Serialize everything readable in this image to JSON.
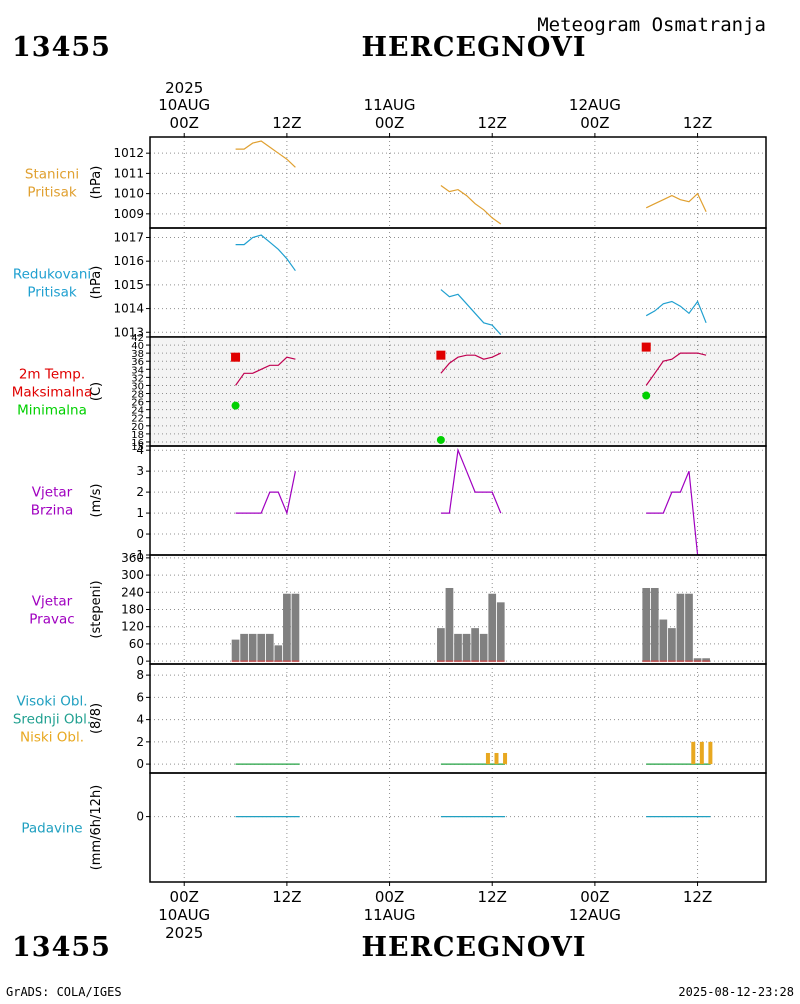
{
  "header": {
    "station_id": "13455",
    "station_name": "HERCEGNOVI",
    "chart_title": "Meteogram Osmatranja"
  },
  "footer": {
    "left": "GrADS: COLA/IGES",
    "right": "2025-08-12-23:28"
  },
  "time_axis": {
    "top": [
      {
        "year": "2025",
        "date": "10AUG",
        "hour": "00Z"
      },
      {
        "year": "",
        "date": "",
        "hour": "12Z"
      },
      {
        "year": "",
        "date": "11AUG",
        "hour": "00Z"
      },
      {
        "year": "",
        "date": "",
        "hour": "12Z"
      },
      {
        "year": "",
        "date": "12AUG",
        "hour": "00Z"
      },
      {
        "year": "",
        "date": "",
        "hour": "12Z"
      }
    ],
    "bottom": [
      {
        "hour": "00Z",
        "date": "10AUG",
        "year": "2025"
      },
      {
        "hour": "12Z",
        "date": "",
        "year": ""
      },
      {
        "hour": "00Z",
        "date": "11AUG",
        "year": ""
      },
      {
        "hour": "12Z",
        "date": "",
        "year": ""
      },
      {
        "hour": "00Z",
        "date": "12AUG",
        "year": ""
      },
      {
        "hour": "12Z",
        "date": "",
        "year": ""
      }
    ],
    "hours": [
      0,
      12,
      24,
      36,
      48,
      60
    ]
  },
  "colors": {
    "station_pressure": "#e0a030",
    "reduced_pressure": "#20a0d0",
    "tmax": "#e00000",
    "tmin": "#00d000",
    "temp_line": "#c00050",
    "wind": "#a000c0",
    "bars": "#808080",
    "bar_base": "#c05050",
    "cloud_low": "#e8a820",
    "cloud_line": "#20a040",
    "precip": "#20a0c0"
  },
  "chart_data": [
    {
      "type": "line",
      "panel": "station_pressure",
      "label_lines": [
        "Stanicni",
        "Pritisak"
      ],
      "label_colors": [
        "#e0a030",
        "#e0a030"
      ],
      "ylabel": "(hPa)",
      "ylim": [
        1008.3,
        1012.8
      ],
      "yticks": [
        1009,
        1010,
        1011,
        1012
      ],
      "xlim": [
        -4,
        68
      ],
      "series": [
        {
          "name": "station pressure",
          "color": "#e0a030",
          "segments": [
            {
              "x": [
                6,
                7,
                8,
                9,
                10,
                11,
                12,
                13
              ],
              "y": [
                1012.2,
                1012.2,
                1012.5,
                1012.6,
                1012.3,
                1012.0,
                1011.7,
                1011.3
              ]
            },
            {
              "x": [
                30,
                31,
                32,
                33,
                34,
                35,
                36,
                37
              ],
              "y": [
                1010.4,
                1010.1,
                1010.2,
                1009.9,
                1009.5,
                1009.2,
                1008.8,
                1008.5
              ]
            },
            {
              "x": [
                54,
                55,
                56,
                57,
                58,
                59,
                60,
                61
              ],
              "y": [
                1009.3,
                1009.5,
                1009.7,
                1009.9,
                1009.7,
                1009.6,
                1010.0,
                1009.1
              ]
            }
          ]
        }
      ]
    },
    {
      "type": "line",
      "panel": "reduced_pressure",
      "label_lines": [
        "Redukovani",
        "Pritisak"
      ],
      "label_colors": [
        "#20a0d0",
        "#20a0d0"
      ],
      "ylabel": "(hPa)",
      "ylim": [
        1012.8,
        1017.4
      ],
      "yticks": [
        1013,
        1014,
        1015,
        1016,
        1017
      ],
      "xlim": [
        -4,
        68
      ],
      "series": [
        {
          "name": "reduced pressure",
          "color": "#20a0d0",
          "segments": [
            {
              "x": [
                6,
                7,
                8,
                9,
                10,
                11,
                12,
                13
              ],
              "y": [
                1016.7,
                1016.7,
                1017.0,
                1017.1,
                1016.8,
                1016.5,
                1016.1,
                1015.6
              ]
            },
            {
              "x": [
                30,
                31,
                32,
                33,
                34,
                35,
                36,
                37
              ],
              "y": [
                1014.8,
                1014.5,
                1014.6,
                1014.2,
                1013.8,
                1013.4,
                1013.3,
                1012.9
              ]
            },
            {
              "x": [
                54,
                55,
                56,
                57,
                58,
                59,
                60,
                61
              ],
              "y": [
                1013.7,
                1013.9,
                1014.2,
                1014.3,
                1014.1,
                1013.8,
                1014.3,
                1013.4
              ]
            }
          ]
        }
      ]
    },
    {
      "type": "line",
      "panel": "temperature",
      "label_lines": [
        "2m Temp.",
        "Maksimalna",
        "Minimalna"
      ],
      "label_colors": [
        "#e00000",
        "#e00000",
        "#00d000"
      ],
      "ylabel": "(C)",
      "ylim": [
        15,
        42
      ],
      "yticks": [
        15,
        16,
        18,
        20,
        22,
        24,
        26,
        28,
        30,
        32,
        34,
        36,
        38,
        40,
        42
      ],
      "xlim": [
        -4,
        68
      ],
      "series": [
        {
          "name": "temperature",
          "color": "#c00050",
          "segments": [
            {
              "x": [
                6,
                7,
                8,
                9,
                10,
                11,
                12,
                13
              ],
              "y": [
                30,
                33,
                33,
                34,
                35,
                35,
                37,
                36.5
              ]
            },
            {
              "x": [
                30,
                31,
                32,
                33,
                34,
                35,
                36,
                37
              ],
              "y": [
                33,
                35.5,
                37,
                37.5,
                37.5,
                36.5,
                37,
                38
              ]
            },
            {
              "x": [
                54,
                55,
                56,
                57,
                58,
                59,
                60,
                61
              ],
              "y": [
                30,
                33,
                36,
                36.5,
                38,
                38,
                38,
                37.5
              ]
            }
          ]
        }
      ],
      "tmax": {
        "x": [
          6,
          30,
          54
        ],
        "y": [
          37,
          37.5,
          39.5
        ],
        "color": "#e00000"
      },
      "tmin": {
        "x": [
          6,
          30,
          54
        ],
        "y": [
          25,
          16.5,
          27.5
        ],
        "color": "#00d000"
      }
    },
    {
      "type": "line",
      "panel": "wind_speed",
      "label_lines": [
        "Vjetar",
        "Brzina"
      ],
      "label_colors": [
        "#a000c0",
        "#a000c0"
      ],
      "ylabel": "(m/s)",
      "ylim": [
        -1,
        4.2
      ],
      "yticks": [
        -1,
        0,
        1,
        2,
        3,
        4
      ],
      "xlim": [
        -4,
        68
      ],
      "series": [
        {
          "name": "wind speed",
          "color": "#a000c0",
          "segments": [
            {
              "x": [
                6,
                7,
                8,
                9,
                10,
                11,
                12,
                13
              ],
              "y": [
                1,
                1,
                1,
                1,
                2,
                2,
                1,
                3
              ]
            },
            {
              "x": [
                30,
                31,
                32,
                33,
                34,
                35,
                36,
                37
              ],
              "y": [
                1,
                1,
                4,
                3,
                2,
                2,
                2,
                1
              ]
            },
            {
              "x": [
                54,
                55,
                56,
                57,
                58,
                59,
                60,
                61
              ],
              "y": [
                1,
                1,
                1,
                2,
                2,
                3,
                -1,
                -1
              ]
            }
          ]
        }
      ]
    },
    {
      "type": "bar",
      "panel": "wind_direction",
      "label_lines": [
        "Vjetar",
        "Pravac"
      ],
      "label_colors": [
        "#a000c0",
        "#a000c0"
      ],
      "ylabel": "(stepeni)",
      "ylim": [
        -10,
        370
      ],
      "yticks": [
        0,
        60,
        120,
        180,
        240,
        300,
        360
      ],
      "xlim": [
        -4,
        68
      ],
      "bars": [
        {
          "x": 6,
          "value": 75
        },
        {
          "x": 7,
          "value": 95
        },
        {
          "x": 8,
          "value": 95
        },
        {
          "x": 9,
          "value": 95
        },
        {
          "x": 10,
          "value": 95
        },
        {
          "x": 11,
          "value": 55
        },
        {
          "x": 12,
          "value": 235
        },
        {
          "x": 13,
          "value": 235
        },
        {
          "x": 30,
          "value": 115
        },
        {
          "x": 31,
          "value": 255
        },
        {
          "x": 32,
          "value": 95
        },
        {
          "x": 33,
          "value": 95
        },
        {
          "x": 34,
          "value": 115
        },
        {
          "x": 35,
          "value": 95
        },
        {
          "x": 36,
          "value": 235
        },
        {
          "x": 37,
          "value": 205
        },
        {
          "x": 54,
          "value": 255
        },
        {
          "x": 55,
          "value": 255
        },
        {
          "x": 56,
          "value": 145
        },
        {
          "x": 57,
          "value": 115
        },
        {
          "x": 58,
          "value": 235
        },
        {
          "x": 59,
          "value": 235
        },
        {
          "x": 60,
          "value": 10
        },
        {
          "x": 61,
          "value": 10
        }
      ]
    },
    {
      "type": "bar",
      "panel": "cloud_cover",
      "label_lines": [
        "Visoki Obl.",
        "Srednji Obl.",
        "Niski Obl."
      ],
      "label_colors": [
        "#20a0c0",
        "#20a090",
        "#e8a820"
      ],
      "ylabel": "(8/8)",
      "ylim": [
        -0.8,
        9
      ],
      "yticks": [
        0,
        2,
        4,
        6,
        8
      ],
      "xlim": [
        -4,
        68
      ],
      "low_cloud": [
        {
          "x": 35.5,
          "value": 1
        },
        {
          "x": 36.5,
          "value": 1
        },
        {
          "x": 37.5,
          "value": 1
        },
        {
          "x": 59.5,
          "value": 2
        },
        {
          "x": 60.5,
          "value": 2
        },
        {
          "x": 61.5,
          "value": 2
        }
      ],
      "baseline_segments": [
        [
          6,
          13.5
        ],
        [
          30,
          37.5
        ],
        [
          54,
          61.5
        ]
      ]
    },
    {
      "type": "line",
      "panel": "precipitation",
      "label_lines": [
        "Padavine"
      ],
      "label_colors": [
        "#20a0c0"
      ],
      "ylabel": "(mm/6h/12h)",
      "ylim": [
        -3,
        2
      ],
      "yticks": [
        0
      ],
      "xlim": [
        -4,
        68
      ],
      "series": [
        {
          "name": "precipitation",
          "color": "#20a0c0",
          "segments": [
            {
              "x": [
                6,
                13.5
              ],
              "y": [
                0,
                0
              ]
            },
            {
              "x": [
                30,
                37.5
              ],
              "y": [
                0,
                0
              ]
            },
            {
              "x": [
                54,
                61.5
              ],
              "y": [
                0,
                0
              ]
            }
          ]
        }
      ]
    }
  ]
}
